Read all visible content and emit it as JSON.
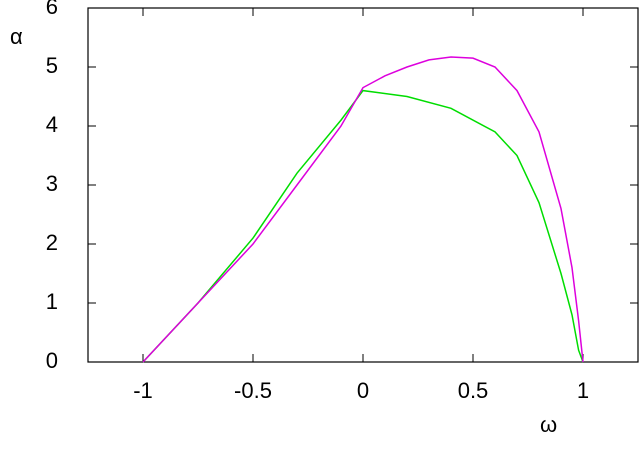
{
  "chart_data": {
    "type": "line",
    "x_label": "ω",
    "y_label": "α",
    "xlim": [
      -1.25,
      1.25
    ],
    "xticks": [
      -1,
      -0.5,
      0,
      0.5,
      1
    ],
    "ylim": [
      0,
      6
    ],
    "yticks": [
      0,
      1,
      2,
      3,
      4,
      5,
      6
    ],
    "grid": false,
    "series": [
      {
        "color": "#00dd00",
        "x": [
          -1,
          -0.75,
          -0.5,
          -0.3,
          -0.1,
          0,
          0.2,
          0.4,
          0.6,
          0.7,
          0.8,
          0.9,
          0.95,
          0.98,
          1
        ],
        "values": [
          0,
          1.0,
          2.1,
          3.2,
          4.1,
          4.6,
          4.5,
          4.3,
          3.9,
          3.5,
          2.7,
          1.5,
          0.8,
          0.2,
          0
        ]
      },
      {
        "color": "#dd00dd",
        "x": [
          -1,
          -0.75,
          -0.5,
          -0.3,
          -0.1,
          0,
          0.1,
          0.2,
          0.3,
          0.4,
          0.5,
          0.6,
          0.7,
          0.8,
          0.9,
          0.95,
          0.98,
          1
        ],
        "values": [
          0,
          1.0,
          2.0,
          3.0,
          4.0,
          4.65,
          4.85,
          5.0,
          5.12,
          5.17,
          5.15,
          5.0,
          4.6,
          3.9,
          2.6,
          1.6,
          0.7,
          0
        ]
      }
    ]
  }
}
